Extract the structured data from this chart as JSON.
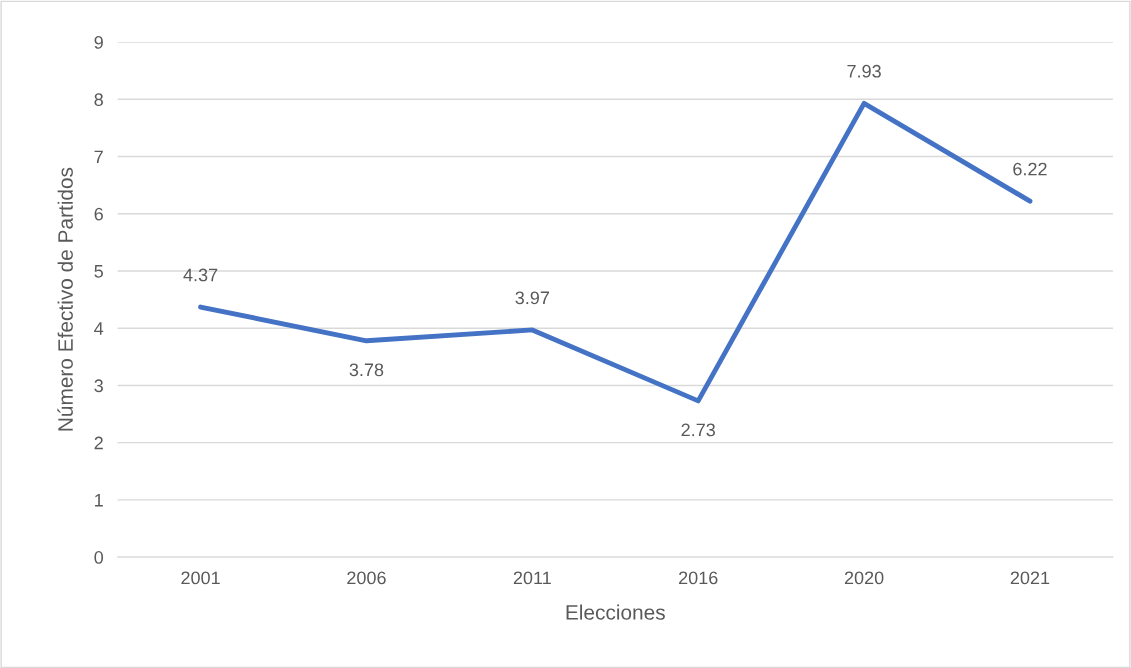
{
  "chart_data": {
    "type": "line",
    "xlabel": "Elecciones",
    "ylabel": "Número Efectivo de Partidos",
    "categories": [
      "2001",
      "2006",
      "2011",
      "2016",
      "2020",
      "2021"
    ],
    "series": [
      {
        "color": "#4472c4",
        "values": [
          4.37,
          3.78,
          3.97,
          2.73,
          7.93,
          6.22
        ]
      }
    ],
    "ylim": [
      0,
      9
    ],
    "yticks": [
      0,
      1,
      2,
      3,
      4,
      5,
      6,
      7,
      8,
      9
    ],
    "grid": "y",
    "data_labels": true,
    "marker": "none",
    "line_style": "solid"
  }
}
